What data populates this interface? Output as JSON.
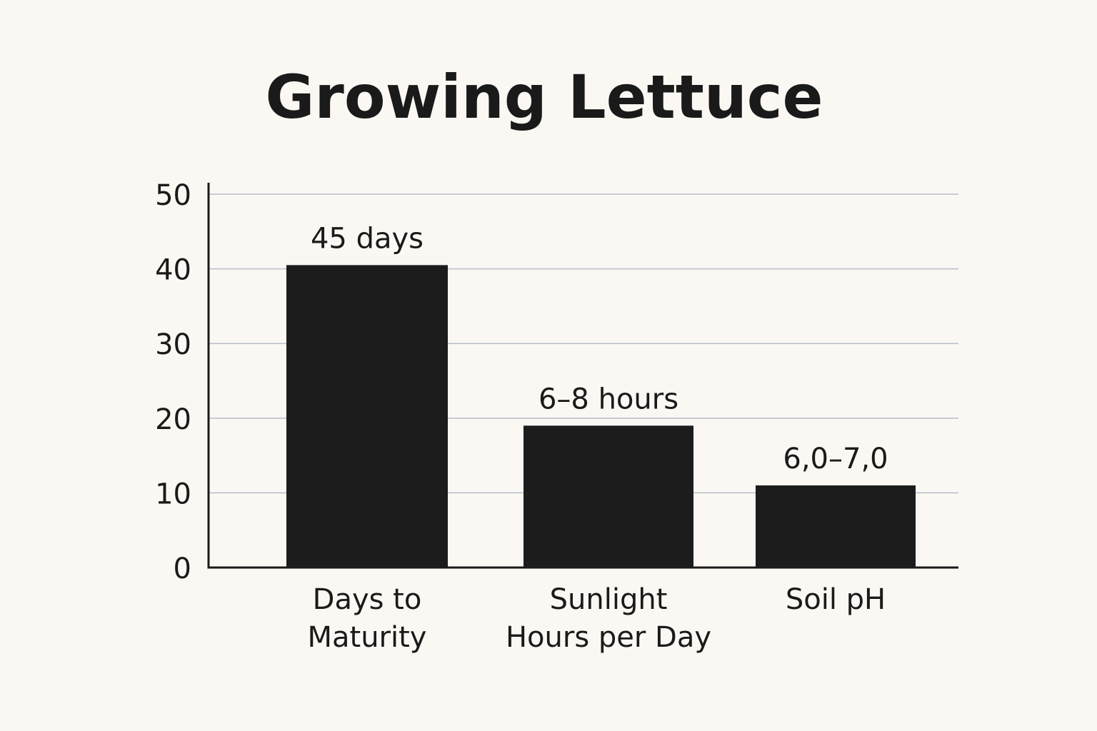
{
  "chart_data": {
    "type": "bar",
    "title": "Growing Lettuce",
    "xlabel": "",
    "ylabel": "",
    "ylim": [
      0,
      50
    ],
    "yticks": [
      0,
      10,
      20,
      30,
      40,
      50
    ],
    "grid": true,
    "categories": [
      [
        "Days to",
        "Maturity"
      ],
      [
        "Sunlight",
        "Hours per Day"
      ],
      [
        "Soil pH"
      ]
    ],
    "values": [
      40.5,
      19,
      11
    ],
    "data_labels": [
      "45 days",
      "6–8 hours",
      "6,0–7,0"
    ],
    "colors": {
      "bar": "#1c1c1c",
      "grid": "#b9bccb",
      "background": "#fbf8f3",
      "text": "#1a1a1a"
    }
  }
}
